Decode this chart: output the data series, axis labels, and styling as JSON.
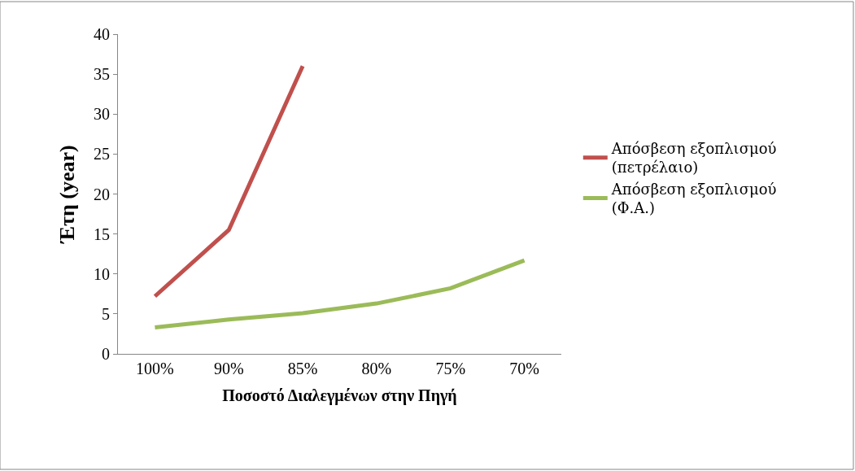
{
  "chart_data": {
    "type": "line",
    "xlabel": "Ποσοστό Διαλεγμένων στην Πηγή",
    "ylabel": "Έτη (year)",
    "categories": [
      "100%",
      "90%",
      "85%",
      "80%",
      "75%",
      "70%"
    ],
    "series": [
      {
        "name": "Απόσβεση εξοπλισμού (πετρέλαιο)",
        "color": "#c0504d",
        "values": [
          7.2,
          15.5,
          36,
          null,
          null,
          null
        ]
      },
      {
        "name": "Απόσβεση εξοπλισμού (Φ.Α.)",
        "color": "#9bbb59",
        "values": [
          3.3,
          4.3,
          5.1,
          6.3,
          8.2,
          11.7
        ]
      }
    ],
    "ylim": [
      0,
      40
    ],
    "yticks": [
      0,
      5,
      10,
      15,
      20,
      25,
      30,
      35,
      40
    ],
    "legend": "right",
    "marker": "none",
    "line_style": "solid"
  }
}
